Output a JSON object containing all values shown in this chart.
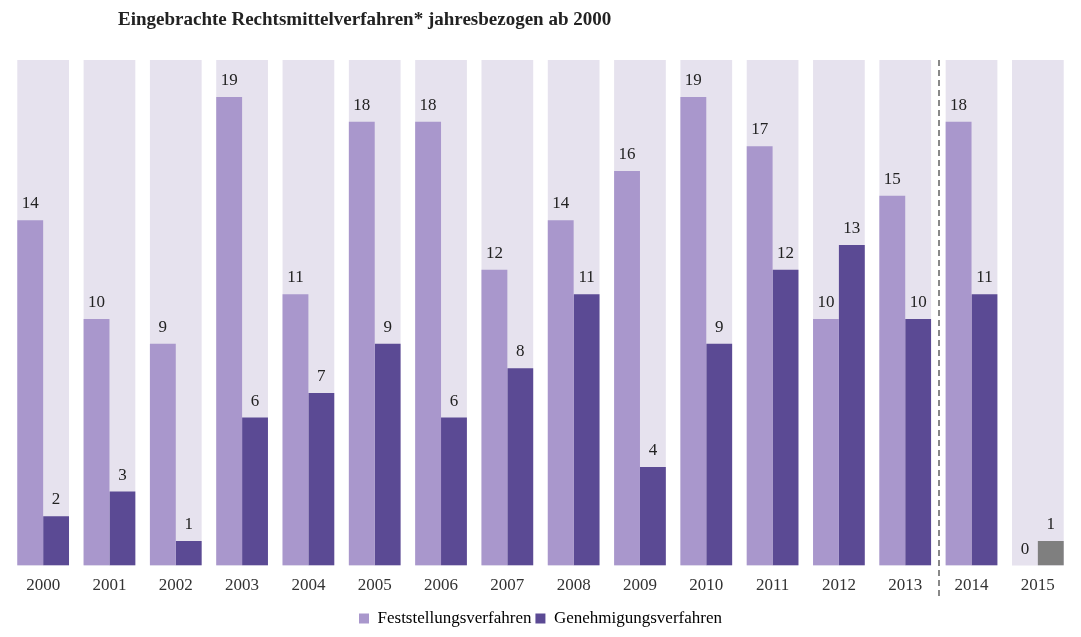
{
  "chart_data": {
    "type": "bar",
    "title": "Eingebrachte Rechtsmittelverfahren* jahresbezogen ab 2000",
    "categories": [
      "2000",
      "2001",
      "2002",
      "2003",
      "2004",
      "2005",
      "2006",
      "2007",
      "2008",
      "2009",
      "2010",
      "2011",
      "2012",
      "2013",
      "2014",
      "2015"
    ],
    "series": [
      {
        "name": "Feststellungsverfahren",
        "color": "#a997cc",
        "values": [
          14,
          10,
          9,
          19,
          11,
          18,
          18,
          12,
          14,
          16,
          19,
          17,
          10,
          15,
          18,
          0
        ]
      },
      {
        "name": "Genehmigungsverfahren",
        "color": "#5b4a94",
        "colors": [
          "#5b4a94",
          "#5b4a94",
          "#5b4a94",
          "#5b4a94",
          "#5b4a94",
          "#5b4a94",
          "#5b4a94",
          "#5b4a94",
          "#5b4a94",
          "#5b4a94",
          "#5b4a94",
          "#5b4a94",
          "#5b4a94",
          "#5b4a94",
          "#5b4a94",
          "#7f7f7f"
        ],
        "values": [
          2,
          3,
          1,
          6,
          7,
          9,
          6,
          8,
          11,
          4,
          9,
          12,
          13,
          10,
          11,
          1
        ]
      }
    ],
    "bands": [
      {
        "axis": "x",
        "from": "2000",
        "to": "2000",
        "color": "#e6e2ee"
      },
      {
        "axis": "x",
        "from": "2001",
        "to": "2001",
        "color": "#e6e2ee"
      },
      {
        "axis": "x",
        "from": "2002",
        "to": "2002",
        "color": "#e6e2ee"
      },
      {
        "axis": "x",
        "from": "2003",
        "to": "2003",
        "color": "#e6e2ee"
      },
      {
        "axis": "x",
        "from": "2004",
        "to": "2004",
        "color": "#e6e2ee"
      },
      {
        "axis": "x",
        "from": "2005",
        "to": "2005",
        "color": "#e6e2ee"
      },
      {
        "axis": "x",
        "from": "2006",
        "to": "2006",
        "color": "#e6e2ee"
      },
      {
        "axis": "x",
        "from": "2007",
        "to": "2007",
        "color": "#e6e2ee"
      },
      {
        "axis": "x",
        "from": "2008",
        "to": "2008",
        "color": "#e6e2ee"
      },
      {
        "axis": "x",
        "from": "2009",
        "to": "2009",
        "color": "#e6e2ee"
      },
      {
        "axis": "x",
        "from": "2010",
        "to": "2010",
        "color": "#e6e2ee"
      },
      {
        "axis": "x",
        "from": "2011",
        "to": "2011",
        "color": "#e6e2ee"
      },
      {
        "axis": "x",
        "from": "2012",
        "to": "2012",
        "color": "#e6e2ee"
      },
      {
        "axis": "x",
        "from": "2013",
        "to": "2013",
        "color": "#e6e2ee"
      },
      {
        "axis": "x",
        "from": "2014",
        "to": "2014",
        "color": "#e6e2ee"
      },
      {
        "axis": "x",
        "from": "2015",
        "to": "2015",
        "color": "#e6e2ee"
      }
    ],
    "ylim": [
      0,
      20.5
    ],
    "tick_labels": "x",
    "grid": false,
    "legend": "bottom",
    "data_labels": true
  }
}
